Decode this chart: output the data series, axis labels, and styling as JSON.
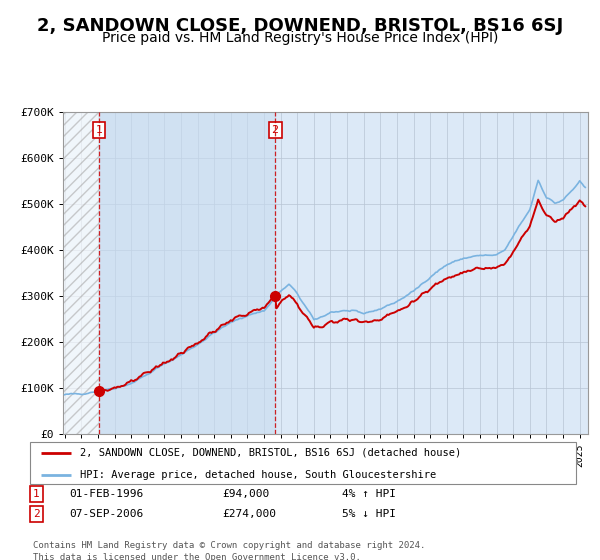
{
  "title": "2, SANDOWN CLOSE, DOWNEND, BRISTOL, BS16 6SJ",
  "subtitle": "Price paid vs. HM Land Registry's House Price Index (HPI)",
  "title_fontsize": 13,
  "subtitle_fontsize": 10,
  "bg_color": "#dce9f7",
  "hpi_color": "#7ab3e0",
  "price_color": "#cc0000",
  "purchase1_date": 1996.08,
  "purchase1_price": 94000,
  "purchase2_date": 2006.67,
  "purchase2_price": 274000,
  "legend_line1": "2, SANDOWN CLOSE, DOWNEND, BRISTOL, BS16 6SJ (detached house)",
  "legend_line2": "HPI: Average price, detached house, South Gloucestershire",
  "table_row1": [
    "1",
    "01-FEB-1996",
    "£94,000",
    "4% ↑ HPI"
  ],
  "table_row2": [
    "2",
    "07-SEP-2006",
    "£274,000",
    "5% ↓ HPI"
  ],
  "footer": "Contains HM Land Registry data © Crown copyright and database right 2024.\nThis data is licensed under the Open Government Licence v3.0.",
  "ylim": [
    0,
    700000
  ],
  "xlim_start": 1993.9,
  "xlim_end": 2025.5,
  "shaded_start": 1996.08,
  "shaded_end": 2006.67,
  "hpi_anchors_t": [
    1994.0,
    1995.0,
    1996.0,
    1997.0,
    1998.0,
    1999.0,
    2000.0,
    2001.0,
    2002.0,
    2003.0,
    2004.0,
    2005.0,
    2006.0,
    2007.0,
    2007.5,
    2008.0,
    2009.0,
    2009.5,
    2010.0,
    2011.0,
    2012.0,
    2013.0,
    2014.0,
    2015.0,
    2016.0,
    2017.0,
    2018.0,
    2019.0,
    2020.0,
    2020.5,
    2021.0,
    2021.5,
    2022.0,
    2022.5,
    2023.0,
    2023.5,
    2024.0,
    2024.5,
    2025.0,
    2025.3
  ],
  "hpi_anchors_p": [
    85000,
    88000,
    93000,
    100000,
    110000,
    130000,
    152000,
    172000,
    195000,
    220000,
    242000,
    258000,
    268000,
    310000,
    325000,
    305000,
    248000,
    255000,
    265000,
    268000,
    262000,
    272000,
    288000,
    310000,
    342000,
    368000,
    382000,
    388000,
    388000,
    400000,
    430000,
    460000,
    488000,
    552000,
    515000,
    502000,
    508000,
    528000,
    548000,
    535000
  ]
}
